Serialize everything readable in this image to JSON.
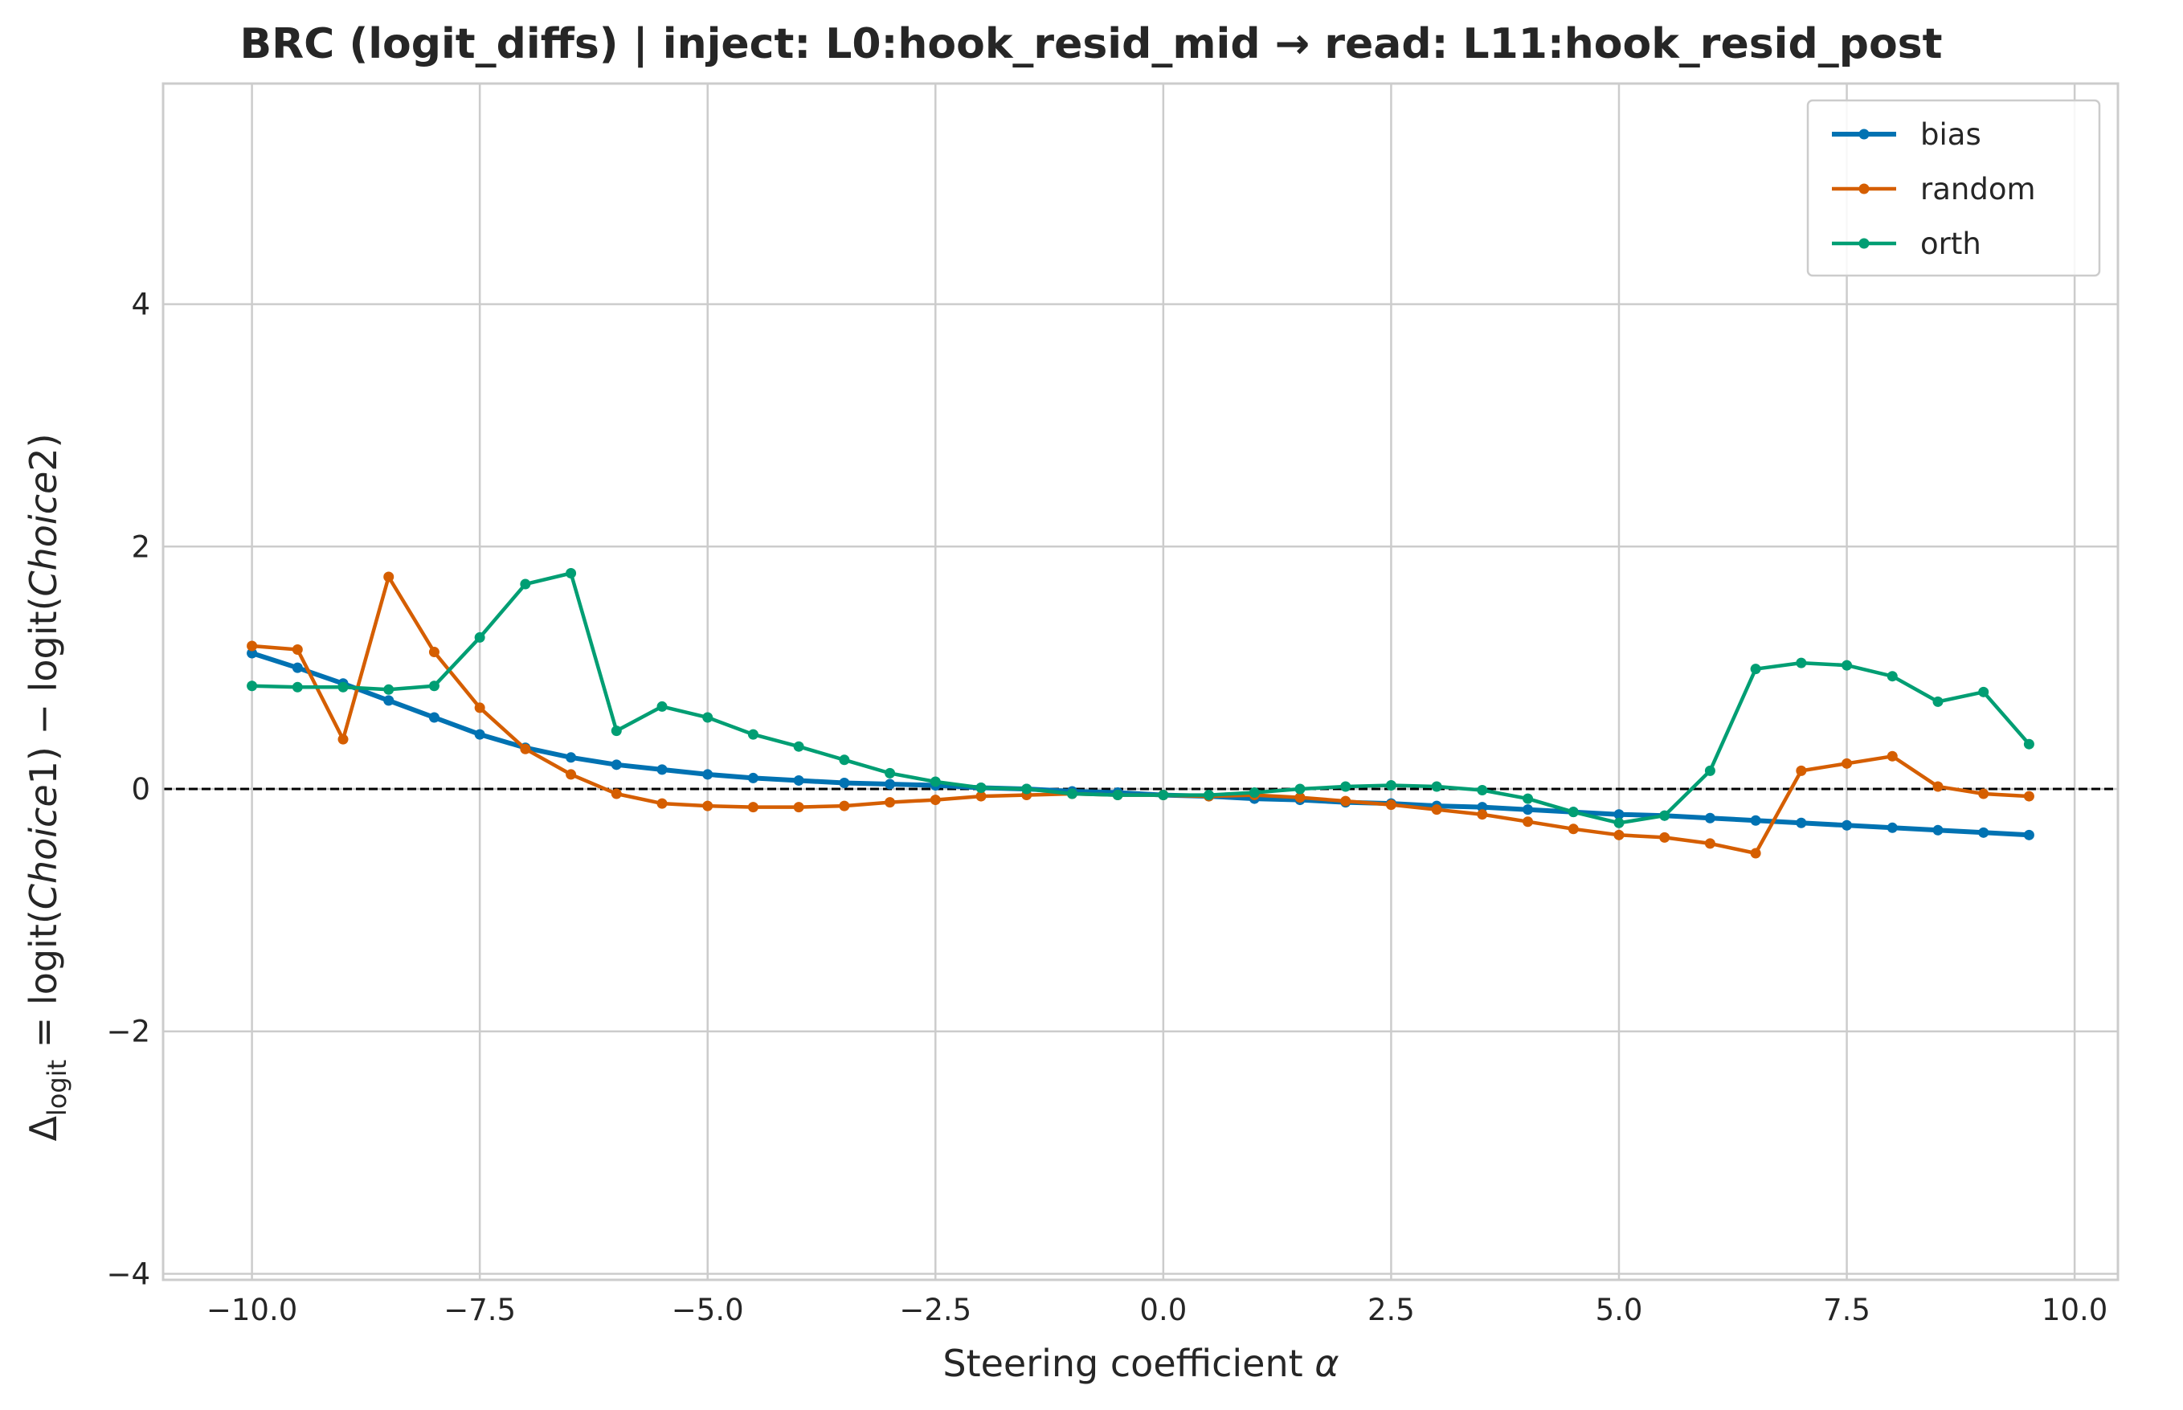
{
  "chart_data": {
    "type": "line",
    "title": "BRC (logit_diffs) | inject: L0:hook_resid_mid → read: L11:hook_resid_post",
    "xlabel": {
      "pre": "Steering coefficient ",
      "var": "α"
    },
    "ylabel": {
      "delta": "Δ",
      "sub": "logit",
      "eq": " = logit(",
      "c1": "Choice",
      "n1": "1",
      "mid": ") − logit(",
      "c2": "Choice",
      "n2": "2",
      "end": ")"
    },
    "xlim": [
      -10.975,
      10.475
    ],
    "ylim": [
      -4.05,
      5.82
    ],
    "xticks": [
      -10,
      -7.5,
      -5,
      -2.5,
      0,
      2.5,
      5,
      7.5,
      10
    ],
    "xtick_labels": [
      "−10.0",
      "−7.5",
      "−5.0",
      "−2.5",
      "0.0",
      "2.5",
      "5.0",
      "7.5",
      "10.0"
    ],
    "yticks": [
      -4,
      -2,
      0,
      2,
      4
    ],
    "ytick_labels": [
      "−4",
      "−2",
      "0",
      "2",
      "4"
    ],
    "grid": true,
    "reference_line": {
      "y": 0,
      "style": "dashed",
      "color": "#000000"
    },
    "legend": {
      "position": "top-right"
    },
    "x": [
      -10,
      -9.5,
      -9,
      -8.5,
      -8,
      -7.5,
      -7,
      -6.5,
      -6,
      -5.5,
      -5,
      -4.5,
      -4,
      -3.5,
      -3,
      -2.5,
      -2,
      -1.5,
      -1,
      -0.5,
      0,
      0.5,
      1,
      1.5,
      2,
      2.5,
      3,
      3.5,
      4,
      4.5,
      5,
      5.5,
      6,
      6.5,
      7,
      7.5,
      8,
      8.5,
      9,
      9.5
    ],
    "series": [
      {
        "name": "bias",
        "color": "#0072b2",
        "linewidth": 6,
        "values": [
          1.12,
          1.0,
          0.87,
          0.73,
          0.59,
          0.45,
          0.34,
          0.26,
          0.2,
          0.16,
          0.12,
          0.09,
          0.07,
          0.05,
          0.04,
          0.03,
          0.01,
          0.0,
          -0.02,
          -0.03,
          -0.05,
          -0.06,
          -0.08,
          -0.09,
          -0.11,
          -0.12,
          -0.14,
          -0.15,
          -0.17,
          -0.19,
          -0.21,
          -0.22,
          -0.24,
          -0.26,
          -0.28,
          -0.3,
          -0.32,
          -0.34,
          -0.36,
          -0.38
        ]
      },
      {
        "name": "random",
        "color": "#d55e00",
        "linewidth": 4.5,
        "values": [
          1.18,
          1.15,
          0.41,
          1.75,
          1.13,
          0.67,
          0.33,
          0.12,
          -0.04,
          -0.12,
          -0.14,
          -0.15,
          -0.15,
          -0.14,
          -0.11,
          -0.09,
          -0.06,
          -0.05,
          -0.04,
          -0.05,
          -0.05,
          -0.06,
          -0.05,
          -0.07,
          -0.1,
          -0.13,
          -0.17,
          -0.21,
          -0.27,
          -0.33,
          -0.38,
          -0.4,
          -0.45,
          -0.53,
          0.15,
          0.21,
          0.27,
          0.02,
          -0.04,
          -0.06
        ]
      },
      {
        "name": "orth",
        "color": "#009e73",
        "linewidth": 4.5,
        "values": [
          0.85,
          0.84,
          0.84,
          0.82,
          0.85,
          1.25,
          1.69,
          1.78,
          0.48,
          0.68,
          0.59,
          0.45,
          0.35,
          0.24,
          0.13,
          0.06,
          0.01,
          0.0,
          -0.04,
          -0.05,
          -0.05,
          -0.05,
          -0.03,
          0.0,
          0.02,
          0.03,
          0.02,
          -0.01,
          -0.08,
          -0.19,
          -0.28,
          -0.22,
          0.15,
          0.99,
          1.04,
          1.02,
          0.93,
          0.72,
          0.8,
          0.37
        ]
      }
    ]
  }
}
